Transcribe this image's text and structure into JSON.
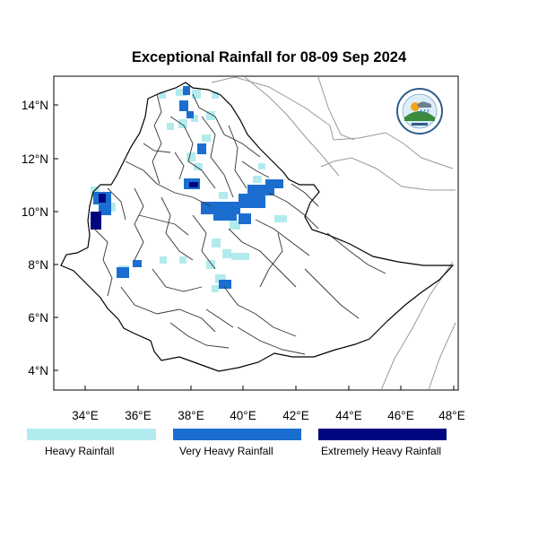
{
  "map": {
    "title": "Exceptional Rainfall for 08-09 Sep 2024",
    "longitude_ticks": [
      "34°E",
      "36°E",
      "38°E",
      "40°E",
      "42°E",
      "44°E",
      "46°E",
      "48°E"
    ],
    "latitude_ticks": [
      "4°N",
      "6°N",
      "8°N",
      "10°N",
      "12°N",
      "14°N"
    ],
    "longitude_range": [
      32.8,
      48.2
    ],
    "latitude_range": [
      3.2,
      15.0
    ],
    "colors": {
      "heavy": "#b2ebee",
      "very_heavy": "#1b6ed0",
      "extremely_heavy": "#00067f",
      "country_border": "#000000",
      "region_border": "#333333",
      "neighbor_border": "#999999"
    }
  },
  "legend": [
    {
      "label": "Heavy Rainfall",
      "color": "#b2ebee"
    },
    {
      "label": "Very Heavy Rainfall",
      "color": "#1b6ed0"
    },
    {
      "label": "Extremely Heavy Rainfall",
      "color": "#00067f"
    }
  ],
  "logo": {
    "icon": "meteorology-agency-logo-icon"
  }
}
